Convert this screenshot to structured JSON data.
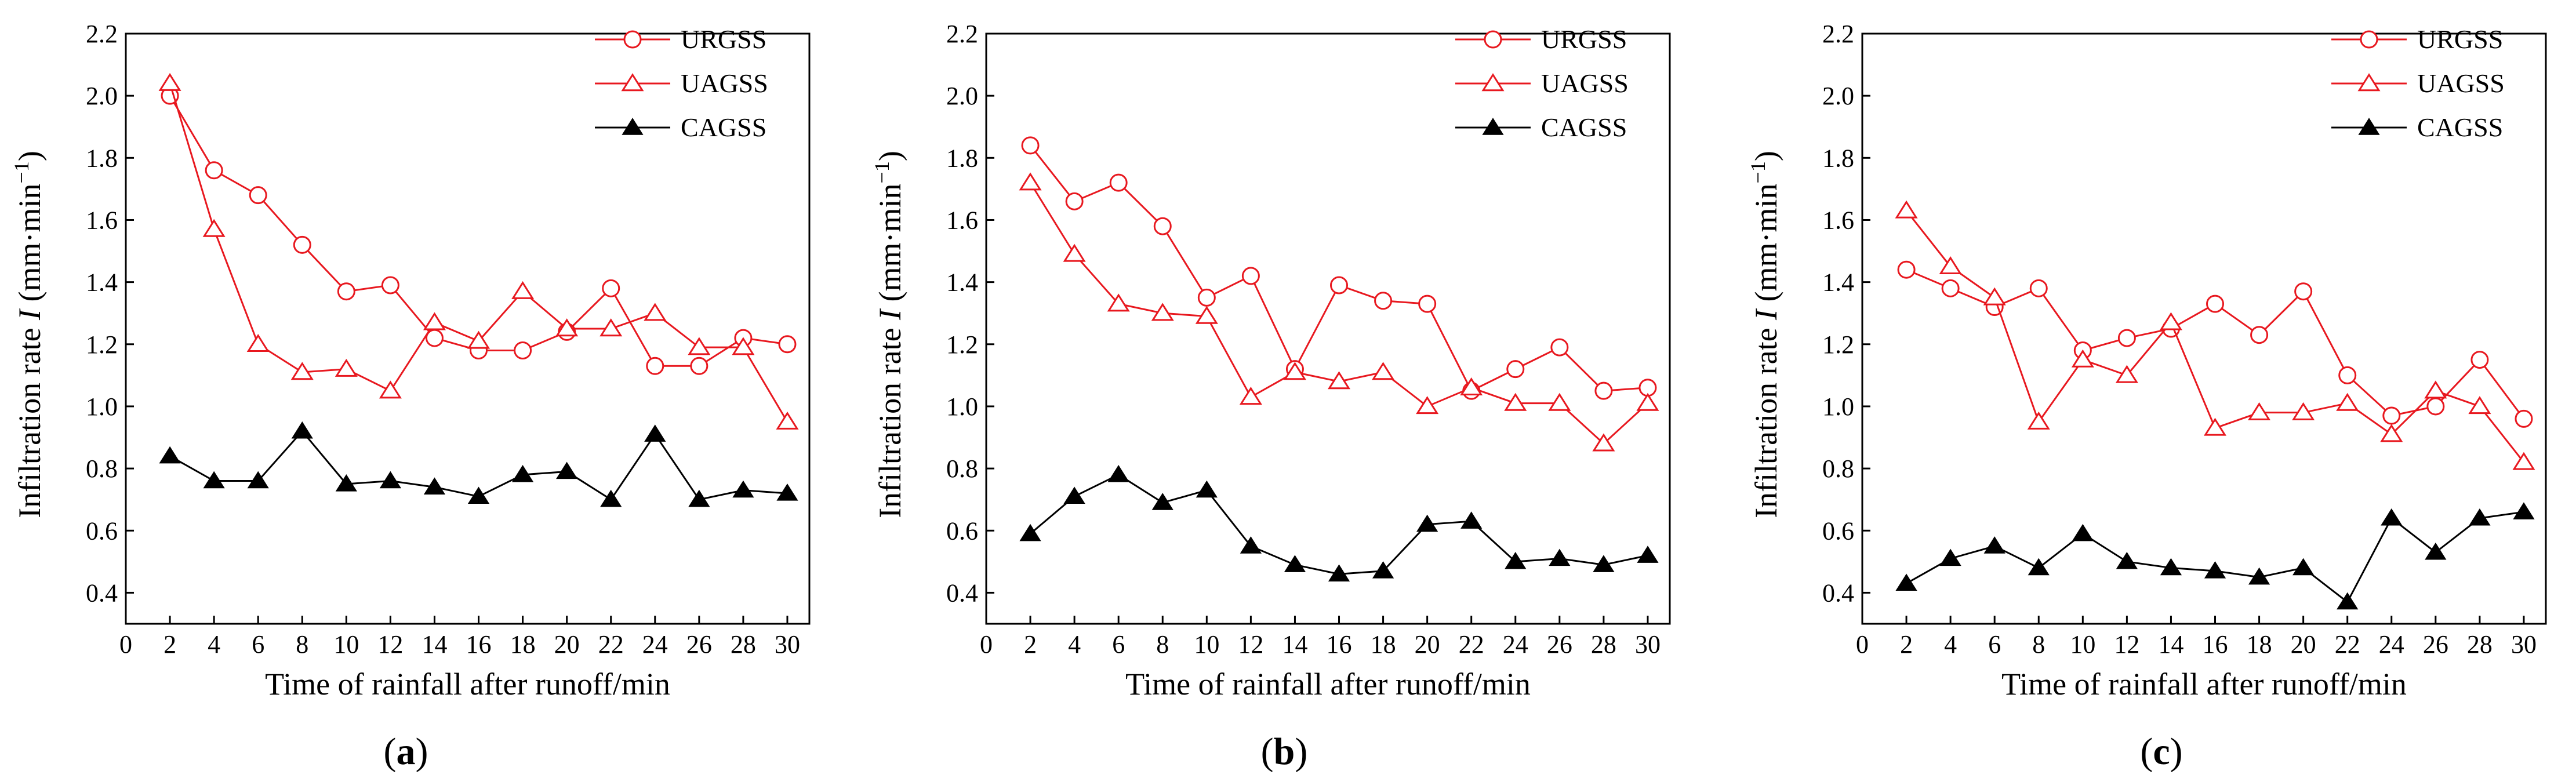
{
  "figure": {
    "panels": [
      "(a)",
      "(b)",
      "(c)"
    ]
  },
  "chart_data": [
    {
      "type": "line",
      "panel": "a",
      "caption": "(a)",
      "caption_letter": "a",
      "xlabel": "Time of rainfall after runoff/min",
      "ylabel_prefix": "Infiltration rate ",
      "ylabel_var": "I",
      "ylabel_unit_open": " (mm·min",
      "ylabel_unit_exp": "−1",
      "ylabel_unit_close": ")",
      "xlim": [
        0,
        31
      ],
      "ylim": [
        0.3,
        2.2
      ],
      "xticks": [
        0,
        2,
        4,
        6,
        8,
        10,
        12,
        14,
        16,
        18,
        20,
        22,
        24,
        26,
        28,
        30
      ],
      "yticks": [
        0.4,
        0.6,
        0.8,
        1.0,
        1.2,
        1.4,
        1.6,
        1.8,
        2.0,
        2.2
      ],
      "x": [
        2,
        4,
        6,
        8,
        10,
        12,
        14,
        16,
        18,
        20,
        22,
        24,
        26,
        28,
        30
      ],
      "legend_position": "top-right",
      "series": [
        {
          "name": "URGSS",
          "marker": "circle-open",
          "color": "#e8181f",
          "values": [
            2.0,
            1.76,
            1.68,
            1.52,
            1.37,
            1.39,
            1.22,
            1.18,
            1.18,
            1.24,
            1.38,
            1.13,
            1.13,
            1.22,
            1.2
          ]
        },
        {
          "name": "UAGSS",
          "marker": "triangle-open",
          "color": "#e8181f",
          "values": [
            2.04,
            1.57,
            1.2,
            1.11,
            1.12,
            1.05,
            1.27,
            1.21,
            1.37,
            1.25,
            1.25,
            1.3,
            1.19,
            1.19,
            0.95
          ]
        },
        {
          "name": "CAGSS",
          "marker": "triangle-filled",
          "color": "#000000",
          "values": [
            0.84,
            0.76,
            0.76,
            0.92,
            0.75,
            0.76,
            0.74,
            0.71,
            0.78,
            0.79,
            0.7,
            0.91,
            0.7,
            0.73,
            0.72
          ]
        }
      ]
    },
    {
      "type": "line",
      "panel": "b",
      "caption": "(b)",
      "caption_letter": "b",
      "xlabel": "Time of rainfall after runoff/min",
      "ylabel_prefix": "Infiltration rate ",
      "ylabel_var": "I",
      "ylabel_unit_open": " (mm·min",
      "ylabel_unit_exp": "−1",
      "ylabel_unit_close": ")",
      "xlim": [
        0,
        31
      ],
      "ylim": [
        0.3,
        2.2
      ],
      "xticks": [
        0,
        2,
        4,
        6,
        8,
        10,
        12,
        14,
        16,
        18,
        20,
        22,
        24,
        26,
        28,
        30
      ],
      "yticks": [
        0.4,
        0.6,
        0.8,
        1.0,
        1.2,
        1.4,
        1.6,
        1.8,
        2.0,
        2.2
      ],
      "x": [
        2,
        4,
        6,
        8,
        10,
        12,
        14,
        16,
        18,
        20,
        22,
        24,
        26,
        28,
        30
      ],
      "legend_position": "top-right",
      "series": [
        {
          "name": "URGSS",
          "marker": "circle-open",
          "color": "#e8181f",
          "values": [
            1.84,
            1.66,
            1.72,
            1.58,
            1.35,
            1.42,
            1.12,
            1.39,
            1.34,
            1.33,
            1.05,
            1.12,
            1.19,
            1.05,
            1.06
          ]
        },
        {
          "name": "UAGSS",
          "marker": "triangle-open",
          "color": "#e8181f",
          "values": [
            1.72,
            1.49,
            1.33,
            1.3,
            1.29,
            1.03,
            1.11,
            1.08,
            1.11,
            1.0,
            1.06,
            1.01,
            1.01,
            0.88,
            1.01
          ]
        },
        {
          "name": "CAGSS",
          "marker": "triangle-filled",
          "color": "#000000",
          "values": [
            0.59,
            0.71,
            0.78,
            0.69,
            0.73,
            0.55,
            0.49,
            0.46,
            0.47,
            0.62,
            0.63,
            0.5,
            0.51,
            0.49,
            0.52
          ]
        }
      ]
    },
    {
      "type": "line",
      "panel": "c",
      "caption": "(c)",
      "caption_letter": "c",
      "xlabel": "Time of rainfall after runoff/min",
      "ylabel_prefix": "Infiltration rate ",
      "ylabel_var": "I",
      "ylabel_unit_open": " (mm·min",
      "ylabel_unit_exp": "−1",
      "ylabel_unit_close": ")",
      "xlim": [
        0,
        31
      ],
      "ylim": [
        0.3,
        2.2
      ],
      "xticks": [
        0,
        2,
        4,
        6,
        8,
        10,
        12,
        14,
        16,
        18,
        20,
        22,
        24,
        26,
        28,
        30
      ],
      "yticks": [
        0.4,
        0.6,
        0.8,
        1.0,
        1.2,
        1.4,
        1.6,
        1.8,
        2.0,
        2.2
      ],
      "x": [
        2,
        4,
        6,
        8,
        10,
        12,
        14,
        16,
        18,
        20,
        22,
        24,
        26,
        28,
        30
      ],
      "legend_position": "top-right",
      "series": [
        {
          "name": "URGSS",
          "marker": "circle-open",
          "color": "#e8181f",
          "values": [
            1.44,
            1.38,
            1.32,
            1.38,
            1.18,
            1.22,
            1.25,
            1.33,
            1.23,
            1.37,
            1.1,
            0.97,
            1.0,
            1.15,
            0.96
          ]
        },
        {
          "name": "UAGSS",
          "marker": "triangle-open",
          "color": "#e8181f",
          "values": [
            1.63,
            1.45,
            1.35,
            0.95,
            1.15,
            1.1,
            1.27,
            0.93,
            0.98,
            0.98,
            1.01,
            0.91,
            1.05,
            1.0,
            0.82
          ]
        },
        {
          "name": "CAGSS",
          "marker": "triangle-filled",
          "color": "#000000",
          "values": [
            0.43,
            0.51,
            0.55,
            0.48,
            0.59,
            0.5,
            0.48,
            0.47,
            0.45,
            0.48,
            0.37,
            0.64,
            0.53,
            0.64,
            0.66
          ]
        }
      ]
    }
  ]
}
